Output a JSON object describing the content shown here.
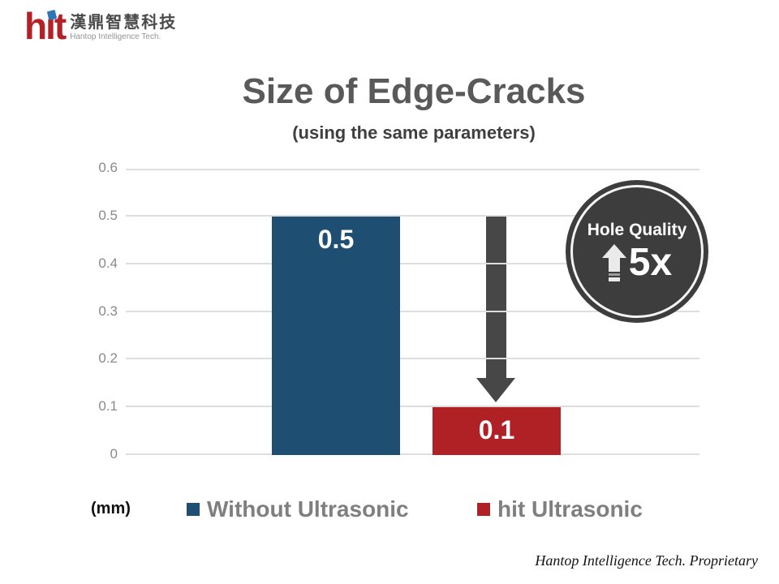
{
  "logo": {
    "brand": "hit",
    "brand_cn": "漢鼎智慧科技",
    "brand_en": "Hantop Intelligence Tech."
  },
  "title": "Size of Edge-Cracks",
  "subtitle": "(using the same parameters)",
  "units_label": "(mm)",
  "badge": {
    "line1": "Hole Quality",
    "multiplier": "5x"
  },
  "footer": "Hantop Intelligence Tech. Proprietary",
  "colors": {
    "bar_blue": "#1F4E73",
    "bar_red": "#B02126",
    "arrow_gray": "#474747",
    "badge_gray": "#3D3D3D",
    "title_gray": "#595959",
    "legend_gray": "#7F7F7F"
  },
  "chart_data": {
    "type": "bar",
    "title": "Size of Edge-Cracks",
    "subtitle": "(using the same parameters)",
    "unit": "mm",
    "categories": [
      "Without Ultrasonic",
      "hit Ultrasonic"
    ],
    "values": [
      0.5,
      0.1
    ],
    "value_labels": [
      "0.5",
      "0.1"
    ],
    "bar_colors": [
      "#1F4E73",
      "#B02126"
    ],
    "ylim": [
      0,
      0.6
    ],
    "yticks": [
      0,
      0.1,
      0.2,
      0.3,
      0.4,
      0.5,
      0.6
    ],
    "ytick_labels": [
      "0",
      "0.1",
      "0.2",
      "0.3",
      "0.4",
      "0.5",
      "0.6"
    ],
    "grid": true,
    "legend_position": "bottom",
    "annotation": "down arrow from 0.5 level to red bar indicating reduction"
  },
  "legend": {
    "items": [
      {
        "label": "Without Ultrasonic",
        "color": "#1F4E73"
      },
      {
        "label": "hit Ultrasonic",
        "color": "#B02126"
      }
    ]
  }
}
